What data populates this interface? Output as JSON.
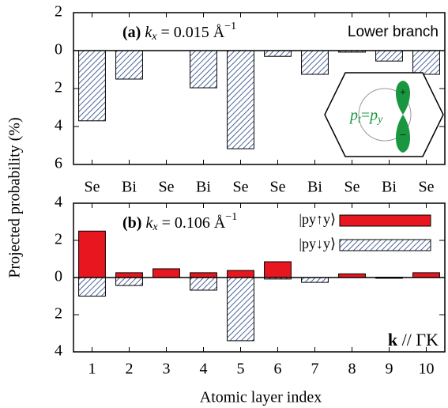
{
  "chart_data": [
    {
      "type": "bar",
      "ylabel": "Projected probability (%)",
      "annotation": {
        "label": "(a)",
        "k": "k",
        "sub": "x",
        "text": " = 0.015 Å",
        "sup": "−1"
      },
      "note": "Lower branch",
      "categories": [
        "Se",
        "Bi",
        "Se",
        "Bi",
        "Se",
        "Se",
        "Bi",
        "Se",
        "Bi",
        "Se"
      ],
      "values": [
        -3.7,
        -1.5,
        0,
        -1.96,
        -5.17,
        -0.3,
        -1.25,
        -0.08,
        -0.55,
        -1.25
      ],
      "color": "#1f3f7f",
      "hatch": true,
      "ylim": [
        -6,
        2
      ],
      "yticks": [
        2,
        0,
        {
          "value": -2,
          "label": "2"
        },
        {
          "value": -4,
          "label": "4"
        },
        {
          "value": -6,
          "label": "6"
        }
      ]
    },
    {
      "type": "bar",
      "xlabel": "Atomic layer index",
      "annotation": {
        "label": "(b)",
        "k": "k",
        "sub": "x",
        "text": " = 0.106 Å",
        "sup": "−1"
      },
      "note": {
        "k": "k",
        "text": " // ΓK"
      },
      "categories": [
        "1",
        "2",
        "3",
        "4",
        "5",
        "6",
        "7",
        "8",
        "9",
        "10"
      ],
      "series": [
        {
          "name": "|py↑y⟩",
          "color": "#e8161e",
          "hatch": false,
          "values": [
            2.5,
            0.26,
            0.47,
            0.26,
            0.38,
            0.85,
            0,
            0.2,
            0.02,
            0.26
          ]
        },
        {
          "name": "|py↓y⟩",
          "color": "#1f3f7f",
          "hatch": true,
          "values": [
            -1.0,
            -0.43,
            0,
            -0.68,
            -3.4,
            -0.08,
            -0.26,
            0,
            -0.04,
            0
          ]
        }
      ],
      "ylim": [
        -4,
        4
      ],
      "yticks": [
        {
          "value": 4,
          "label": "4"
        },
        2,
        0,
        {
          "value": -2,
          "label": "2"
        },
        {
          "value": -4,
          "label": "4"
        }
      ]
    }
  ],
  "inset_diagram": {
    "p1": "p",
    "t": "t",
    "eq": "=",
    "p2": "p",
    "y": "y",
    "plus": "+",
    "minus": "−"
  }
}
